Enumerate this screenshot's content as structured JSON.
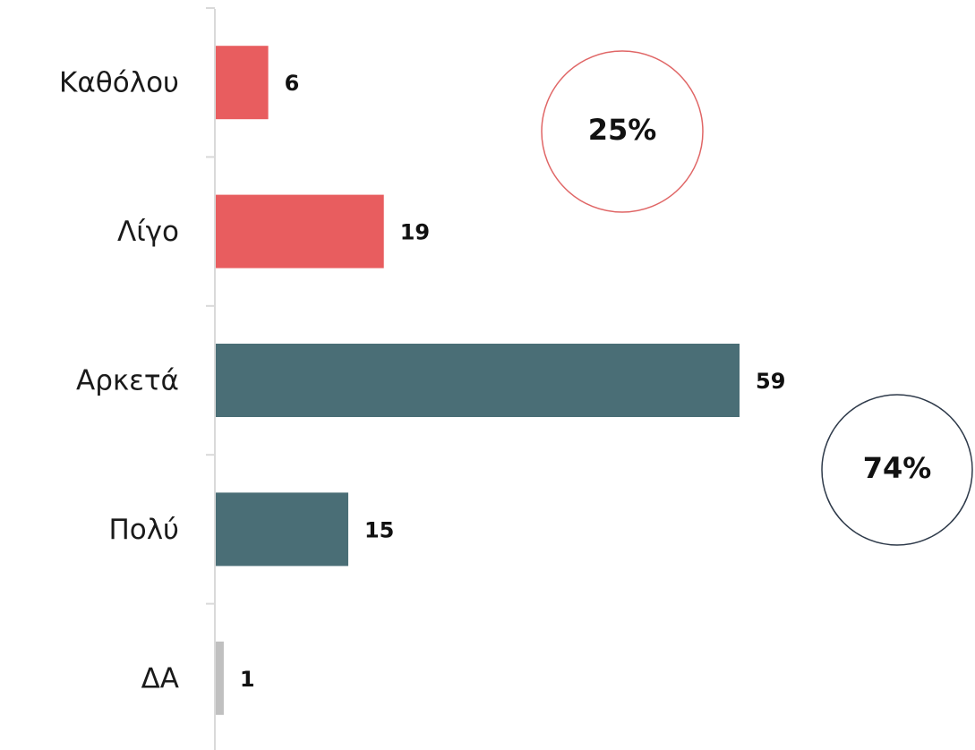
{
  "chart_data": {
    "type": "bar",
    "orientation": "horizontal",
    "categories": [
      "Καθόλου",
      "Λίγο",
      "Αρκετά",
      "Πολύ",
      "ΔΑ"
    ],
    "values": [
      6,
      19,
      59,
      15,
      1
    ],
    "colors": [
      "#e85d5f",
      "#e85d5f",
      "#4a6e76",
      "#4a6e76",
      "#c0c0c0"
    ],
    "annotations": [
      {
        "text": "25%",
        "color": "#e06666"
      },
      {
        "text": "74%",
        "color": "#2e3a4a"
      }
    ]
  }
}
